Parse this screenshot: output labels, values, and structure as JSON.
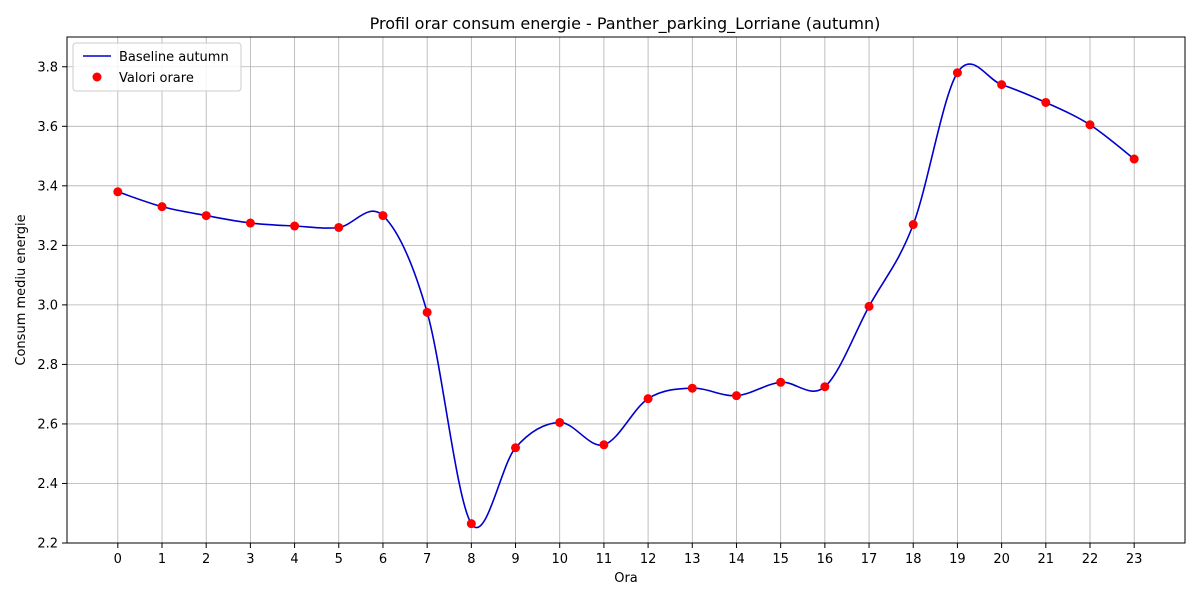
{
  "chart_data": {
    "type": "line",
    "title": "Profil orar consum energie - Panther_parking_Lorriane (autumn)",
    "xlabel": "Ora",
    "ylabel": "Consum mediu energie",
    "x": [
      0,
      1,
      2,
      3,
      4,
      5,
      6,
      7,
      8,
      9,
      10,
      11,
      12,
      13,
      14,
      15,
      16,
      17,
      18,
      19,
      20,
      21,
      22,
      23
    ],
    "xticks": [
      "0",
      "1",
      "2",
      "3",
      "4",
      "5",
      "6",
      "7",
      "8",
      "9",
      "10",
      "11",
      "12",
      "13",
      "14",
      "15",
      "16",
      "17",
      "18",
      "19",
      "20",
      "21",
      "22",
      "23"
    ],
    "yticks": [
      "2.2",
      "2.4",
      "2.6",
      "2.8",
      "3.0",
      "3.2",
      "3.4",
      "3.6",
      "3.8"
    ],
    "xlim": [
      -1.15,
      24.15
    ],
    "ylim": [
      2.2,
      3.9
    ],
    "grid": true,
    "legend": "top-left",
    "series": [
      {
        "name": "Baseline autumn",
        "kind": "line",
        "color": "#0000cd",
        "values": [
          3.38,
          3.33,
          3.3,
          3.275,
          3.265,
          3.26,
          3.3,
          2.975,
          2.265,
          2.52,
          2.605,
          2.53,
          2.685,
          2.72,
          2.695,
          2.74,
          2.725,
          2.995,
          3.27,
          3.78,
          3.74,
          3.68,
          3.605,
          3.49
        ]
      },
      {
        "name": "Valori orare",
        "kind": "scatter",
        "color": "#ff0000",
        "values": [
          3.38,
          3.33,
          3.3,
          3.275,
          3.265,
          3.26,
          3.3,
          2.975,
          2.265,
          2.52,
          2.605,
          2.53,
          2.685,
          2.72,
          2.695,
          2.74,
          2.725,
          2.995,
          3.27,
          3.78,
          3.74,
          3.68,
          3.605,
          3.49
        ]
      }
    ]
  }
}
